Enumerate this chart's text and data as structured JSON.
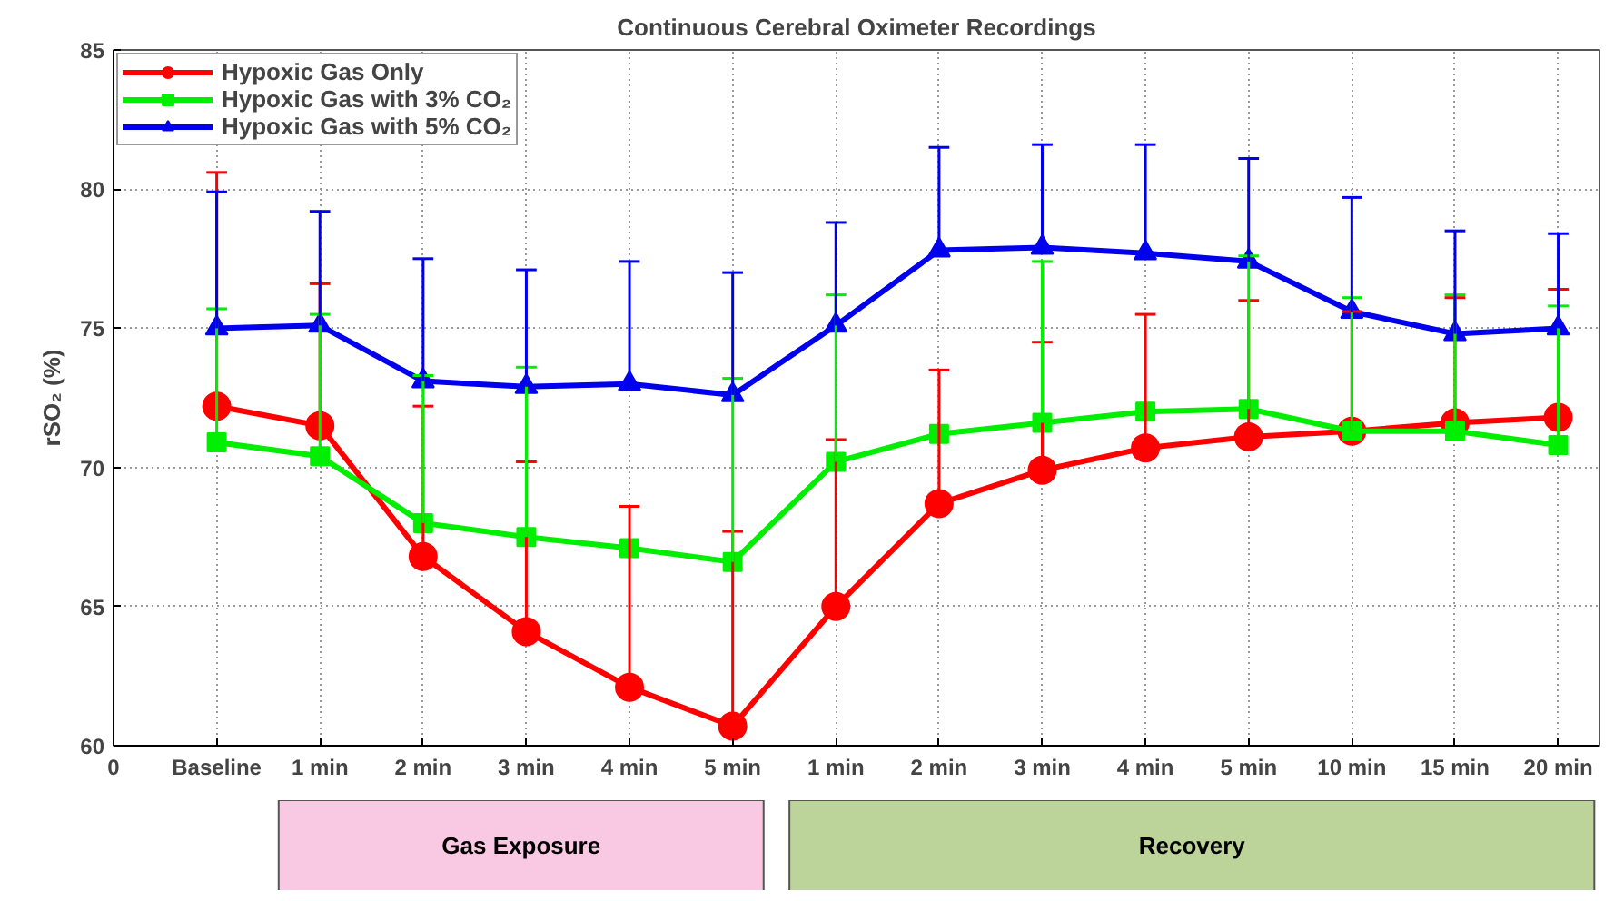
{
  "chart_data": {
    "type": "line",
    "title": "Continuous Cerebral Oximeter Recordings",
    "ylabel": "rSO₂ (%)",
    "categories": [
      "0",
      "Baseline",
      "1 min",
      "2 min",
      "3 min",
      "4 min",
      "5 min",
      "1 min",
      "2 min",
      "3 min",
      "4 min",
      "5 min",
      "10 min",
      "15 min",
      "20 min"
    ],
    "ylim": [
      60,
      85
    ],
    "yticks": [
      60,
      65,
      70,
      75,
      80,
      85
    ],
    "series": [
      {
        "name": "Hypoxic Gas Only",
        "color": "#ff0000",
        "marker": "circle",
        "values": [
          null,
          72.2,
          71.5,
          66.8,
          64.1,
          62.1,
          60.7,
          65.0,
          68.7,
          69.9,
          70.7,
          71.1,
          71.3,
          71.6,
          71.8
        ],
        "errors": [
          null,
          [
            72.2,
            80.6
          ],
          [
            71.5,
            76.6
          ],
          [
            66.8,
            72.2
          ],
          [
            64.1,
            70.2
          ],
          [
            62.1,
            68.6
          ],
          [
            60.7,
            67.7
          ],
          [
            65.0,
            71.0
          ],
          [
            68.7,
            73.5
          ],
          [
            69.9,
            74.5
          ],
          [
            70.7,
            75.5
          ],
          [
            71.1,
            76.0
          ],
          [
            71.3,
            75.6
          ],
          [
            71.6,
            76.1
          ],
          [
            71.8,
            76.4
          ]
        ]
      },
      {
        "name": "Hypoxic Gas with 3% CO₂",
        "color": "#00ee00",
        "marker": "square",
        "values": [
          null,
          70.9,
          70.4,
          68.0,
          67.5,
          67.1,
          66.6,
          70.2,
          71.2,
          71.6,
          72.0,
          72.1,
          71.3,
          71.3,
          70.8
        ],
        "errors": [
          null,
          [
            70.9,
            75.7
          ],
          [
            70.4,
            75.5
          ],
          [
            68.0,
            73.3
          ],
          [
            67.5,
            73.6
          ],
          null,
          [
            66.6,
            73.2
          ],
          [
            70.2,
            76.2
          ],
          null,
          [
            71.6,
            77.4
          ],
          null,
          [
            72.1,
            77.6
          ],
          [
            71.3,
            76.1
          ],
          [
            71.3,
            76.2
          ],
          [
            70.8,
            75.8
          ]
        ]
      },
      {
        "name": "Hypoxic Gas with 5% CO₂",
        "color": "#0000ee",
        "marker": "triangle",
        "values": [
          null,
          75.0,
          75.1,
          73.1,
          72.9,
          73.0,
          72.6,
          75.1,
          77.8,
          77.9,
          77.7,
          77.4,
          75.6,
          74.8,
          75.0
        ],
        "errors": [
          null,
          [
            75.0,
            79.9
          ],
          [
            75.1,
            79.2
          ],
          [
            73.1,
            77.5
          ],
          [
            72.9,
            77.1
          ],
          [
            73.0,
            77.4
          ],
          [
            72.6,
            77.0
          ],
          [
            75.1,
            78.8
          ],
          [
            77.8,
            81.5
          ],
          [
            77.9,
            81.6
          ],
          [
            77.7,
            81.6
          ],
          [
            77.4,
            81.1
          ],
          [
            75.6,
            79.7
          ],
          [
            74.8,
            78.5
          ],
          [
            75.0,
            78.4
          ]
        ]
      }
    ],
    "annotations": [
      "Gas Exposure",
      "Recovery"
    ],
    "grid": true,
    "legend": "top left",
    "line_style": "solid"
  }
}
